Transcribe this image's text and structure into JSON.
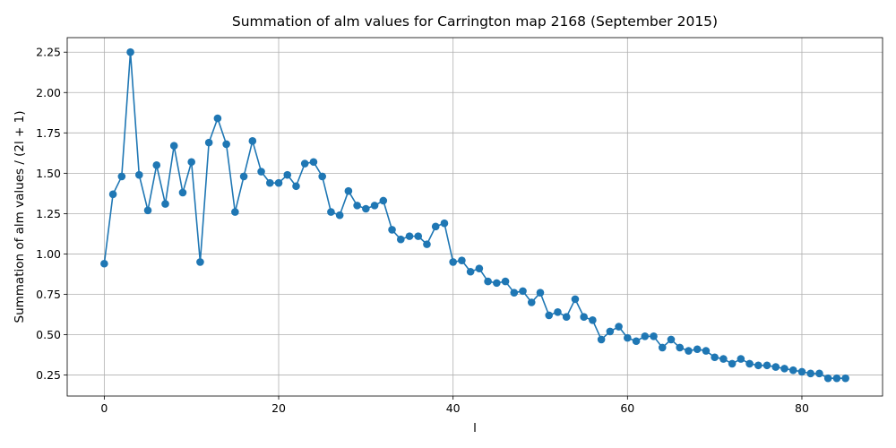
{
  "chart_data": {
    "type": "line",
    "title": "Summation of alm values for Carrington map 2168 (September 2015)",
    "xlabel": "l",
    "ylabel": "Summation of alm values / (2l + 1)",
    "xlim": [
      -4.25,
      89.25
    ],
    "ylim": [
      0.12,
      2.34
    ],
    "xticks": [
      0,
      20,
      40,
      60,
      80
    ],
    "xtick_labels": [
      "0",
      "20",
      "40",
      "60",
      "80"
    ],
    "yticks": [
      0.25,
      0.5,
      0.75,
      1.0,
      1.25,
      1.5,
      1.75,
      2.0,
      2.25
    ],
    "ytick_labels": [
      "0.25",
      "0.50",
      "0.75",
      "1.00",
      "1.25",
      "1.50",
      "1.75",
      "2.00",
      "2.25"
    ],
    "grid": true,
    "marker": "circle",
    "color": "#1f77b4",
    "series": [
      {
        "x": [
          0,
          1,
          2,
          3,
          4,
          5,
          6,
          7,
          8,
          9,
          10,
          11,
          12,
          13,
          14,
          15,
          16,
          17,
          18,
          19,
          20,
          21,
          22,
          23,
          24,
          25,
          26,
          27,
          28,
          29,
          30,
          31,
          32,
          33,
          34,
          35,
          36,
          37,
          38,
          39,
          40,
          41,
          42,
          43,
          44,
          45,
          46,
          47,
          48,
          49,
          50,
          51,
          52,
          53,
          54,
          55,
          56,
          57,
          58,
          59,
          60,
          61,
          62,
          63,
          64,
          65,
          66,
          67,
          68,
          69,
          70,
          71,
          72,
          73,
          74,
          75,
          76,
          77,
          78,
          79,
          80,
          81,
          82,
          83,
          84,
          85
        ],
        "y": [
          0.94,
          1.37,
          1.48,
          2.25,
          1.49,
          1.27,
          1.55,
          1.31,
          1.67,
          1.38,
          1.57,
          0.95,
          1.69,
          1.84,
          1.68,
          1.26,
          1.48,
          1.7,
          1.51,
          1.44,
          1.44,
          1.49,
          1.42,
          1.56,
          1.57,
          1.48,
          1.26,
          1.24,
          1.39,
          1.3,
          1.28,
          1.3,
          1.33,
          1.15,
          1.09,
          1.11,
          1.11,
          1.06,
          1.17,
          1.19,
          0.95,
          0.96,
          0.89,
          0.91,
          0.83,
          0.82,
          0.83,
          0.76,
          0.77,
          0.7,
          0.76,
          0.62,
          0.64,
          0.61,
          0.72,
          0.61,
          0.59,
          0.47,
          0.52,
          0.55,
          0.48,
          0.46,
          0.49,
          0.49,
          0.42,
          0.47,
          0.42,
          0.4,
          0.41,
          0.4,
          0.36,
          0.35,
          0.32,
          0.35,
          0.32,
          0.31,
          0.31,
          0.3,
          0.29,
          0.28,
          0.27,
          0.26,
          0.26,
          0.23,
          0.23,
          0.23
        ]
      }
    ]
  }
}
